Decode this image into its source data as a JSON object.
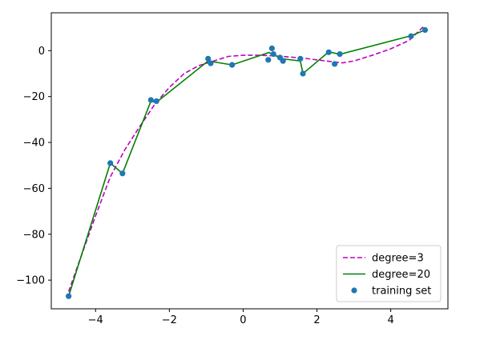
{
  "chart_data": {
    "type": "line",
    "title": "",
    "xlabel": "",
    "ylabel": "",
    "xlim": [
      -5.2,
      5.55
    ],
    "ylim": [
      -112.5,
      16.5
    ],
    "grid": false,
    "legend_position": "lower right",
    "x_ticks": [
      {
        "value": -4,
        "label": "−4"
      },
      {
        "value": -2,
        "label": "−2"
      },
      {
        "value": 0,
        "label": "0"
      },
      {
        "value": 2,
        "label": "2"
      },
      {
        "value": 4,
        "label": "4"
      }
    ],
    "y_ticks": [
      {
        "value": 0,
        "label": "0"
      },
      {
        "value": -20,
        "label": "−20"
      },
      {
        "value": -40,
        "label": "−40"
      },
      {
        "value": -60,
        "label": "−60"
      },
      {
        "value": -80,
        "label": "−80"
      },
      {
        "value": -100,
        "label": "−100"
      }
    ],
    "series": [
      {
        "name": "degree=3",
        "kind": "line",
        "style": "dashed",
        "color": "#bf00bf",
        "points": [
          [
            -4.73,
            -105
          ],
          [
            -4.4,
            -90
          ],
          [
            -4.0,
            -72
          ],
          [
            -3.6,
            -55
          ],
          [
            -3.2,
            -43
          ],
          [
            -2.8,
            -33
          ],
          [
            -2.4,
            -23.5
          ],
          [
            -2.0,
            -16
          ],
          [
            -1.6,
            -10
          ],
          [
            -1.2,
            -6.5
          ],
          [
            -0.8,
            -4.5
          ],
          [
            -0.4,
            -2.5
          ],
          [
            0.0,
            -2.0
          ],
          [
            0.4,
            -2.0
          ],
          [
            0.8,
            -2.2
          ],
          [
            1.2,
            -2.7
          ],
          [
            1.6,
            -3.2
          ],
          [
            2.0,
            -4.0
          ],
          [
            2.4,
            -4.8
          ],
          [
            2.7,
            -5.3
          ],
          [
            3.0,
            -4.5
          ],
          [
            3.5,
            -2.0
          ],
          [
            4.0,
            0.8
          ],
          [
            4.5,
            4.5
          ],
          [
            4.92,
            11.0
          ]
        ]
      },
      {
        "name": "degree=20",
        "kind": "line",
        "style": "solid",
        "color": "#008000",
        "points": [
          [
            -4.73,
            -107
          ],
          [
            -3.6,
            -49
          ],
          [
            -3.27,
            -53.5
          ],
          [
            -2.5,
            -22
          ],
          [
            -2.35,
            -22.5
          ],
          [
            -0.95,
            -4.5
          ],
          [
            -0.3,
            -6.2
          ],
          [
            0.7,
            -0.8
          ],
          [
            1.05,
            -3.5
          ],
          [
            1.55,
            -4.5
          ],
          [
            1.62,
            -10
          ],
          [
            2.32,
            -0.5
          ],
          [
            2.62,
            -1.6
          ],
          [
            4.55,
            6.5
          ],
          [
            4.93,
            9.0
          ]
        ]
      },
      {
        "name": "training set",
        "kind": "scatter",
        "color": "#1f77b4",
        "points": [
          [
            -4.73,
            -107
          ],
          [
            -3.6,
            -49
          ],
          [
            -3.27,
            -53.5
          ],
          [
            -2.5,
            -21.5
          ],
          [
            -2.35,
            -22
          ],
          [
            -0.95,
            -3.5
          ],
          [
            -0.88,
            -5.5
          ],
          [
            -0.3,
            -6.2
          ],
          [
            0.68,
            -4
          ],
          [
            0.78,
            1
          ],
          [
            0.82,
            -1.5
          ],
          [
            1.0,
            -3
          ],
          [
            1.08,
            -4.5
          ],
          [
            1.55,
            -3.5
          ],
          [
            1.62,
            -10
          ],
          [
            2.32,
            -0.7
          ],
          [
            2.48,
            -5.8
          ],
          [
            2.62,
            -1.5
          ],
          [
            4.55,
            6.3
          ],
          [
            4.93,
            9.0
          ]
        ]
      }
    ],
    "legend": [
      {
        "label": "degree=3",
        "marker": "dashed-line",
        "color": "#bf00bf"
      },
      {
        "label": "degree=20",
        "marker": "solid-line",
        "color": "#008000"
      },
      {
        "label": "training set",
        "marker": "dot",
        "color": "#1f77b4"
      }
    ]
  }
}
